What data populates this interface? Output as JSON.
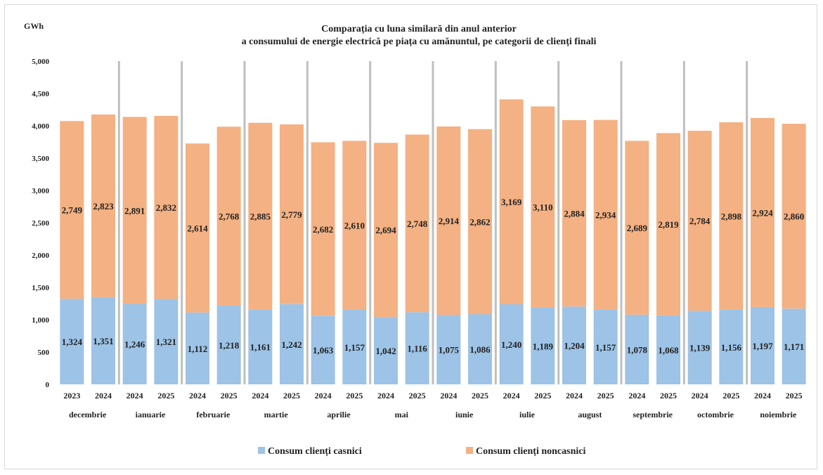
{
  "chart_data": {
    "type": "bar",
    "stacked": true,
    "title_line1": "Comparația cu luna similară din anul anterior",
    "title_line2": "a consumului de energie electrică pe piața cu amănuntul, pe categorii de clienți finali",
    "ylabel": "GWh",
    "ylim": [
      0,
      5000
    ],
    "yticks": [
      "0",
      "500",
      "1,000",
      "1,500",
      "2,000",
      "2,500",
      "3,000",
      "3,500",
      "4,000",
      "4,500",
      "5,000"
    ],
    "grid": false,
    "legend_position": "bottom",
    "groups": [
      {
        "month": "decembrie",
        "years": [
          "2023",
          "2024"
        ]
      },
      {
        "month": "ianuarie",
        "years": [
          "2024",
          "2025"
        ]
      },
      {
        "month": "februarie",
        "years": [
          "2024",
          "2025"
        ]
      },
      {
        "month": "martie",
        "years": [
          "2024",
          "2025"
        ]
      },
      {
        "month": "aprilie",
        "years": [
          "2024",
          "2025"
        ]
      },
      {
        "month": "mai",
        "years": [
          "2024",
          "2025"
        ]
      },
      {
        "month": "iunie",
        "years": [
          "2024",
          "2025"
        ]
      },
      {
        "month": "iulie",
        "years": [
          "2024",
          "2025"
        ]
      },
      {
        "month": "august",
        "years": [
          "2024",
          "2025"
        ]
      },
      {
        "month": "septembrie",
        "years": [
          "2024",
          "2025"
        ]
      },
      {
        "month": "octombrie",
        "years": [
          "2024",
          "2025"
        ]
      },
      {
        "month": "noiembrie",
        "years": [
          "2024",
          "2025"
        ]
      }
    ],
    "series": [
      {
        "name": "Consum clienți casnici",
        "color": "#9dc3e6",
        "values": [
          1324,
          1351,
          1246,
          1321,
          1112,
          1218,
          1161,
          1242,
          1063,
          1157,
          1042,
          1116,
          1075,
          1086,
          1240,
          1189,
          1204,
          1157,
          1078,
          1068,
          1139,
          1156,
          1197,
          1171
        ],
        "labels": [
          "1,324",
          "1,351",
          "1,246",
          "1,321",
          "1,112",
          "1,218",
          "1,161",
          "1,242",
          "1,063",
          "1,157",
          "1,042",
          "1,116",
          "1,075",
          "1,086",
          "1,240",
          "1,189",
          "1,204",
          "1,157",
          "1,078",
          "1,068",
          "1,139",
          "1,156",
          "1,197",
          "1,171"
        ]
      },
      {
        "name": "Consum clienți noncasnici",
        "color": "#f4b183",
        "values": [
          2749,
          2823,
          2891,
          2832,
          2614,
          2768,
          2885,
          2779,
          2682,
          2610,
          2694,
          2748,
          2914,
          2862,
          3169,
          3110,
          2884,
          2934,
          2689,
          2819,
          2784,
          2898,
          2924,
          2860
        ],
        "labels": [
          "2,749",
          "2,823",
          "2,891",
          "2,832",
          "2,614",
          "2,768",
          "2,885",
          "2,779",
          "2,682",
          "2,610",
          "2,694",
          "2,748",
          "2,914",
          "2,862",
          "3,169",
          "3,110",
          "2,884",
          "2,934",
          "2,689",
          "2,819",
          "2,784",
          "2,898",
          "2,924",
          "2,860"
        ]
      }
    ],
    "separator_color": "#bfbfbf"
  }
}
